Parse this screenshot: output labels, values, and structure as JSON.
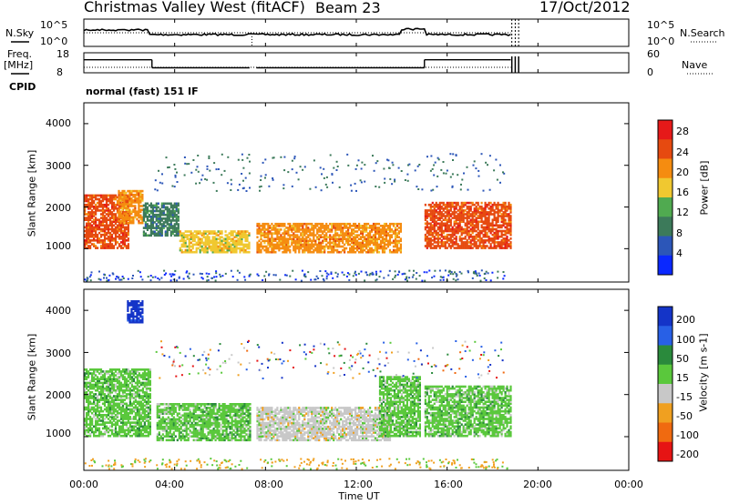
{
  "header": {
    "title": "Christmas Valley West (fitACF)",
    "beam": "Beam 23",
    "date": "17/Oct/2012"
  },
  "panels": {
    "noise": {
      "left_label": "N.Sky",
      "left_ticks": [
        "10^5",
        "10^0"
      ],
      "right_ticks": [
        "10^5",
        "10^0"
      ],
      "right_label": "N.Search"
    },
    "freq": {
      "left_label_line1": "Freq.",
      "left_label_line2": "[MHz]",
      "left_ticks": [
        "18",
        "8"
      ],
      "right_ticks": [
        "60",
        "0"
      ],
      "right_label": "Nave"
    },
    "cpid": {
      "label": "CPID",
      "program": "normal (fast) 151 IF"
    },
    "power": {
      "ylabel": "Slant Range [km]",
      "yticks": [
        "4000",
        "3000",
        "2000",
        "1000"
      ],
      "colorbar_label": "Power [dB]",
      "colorbar_ticks": [
        "28",
        "24",
        "20",
        "16",
        "12",
        "8",
        "4"
      ]
    },
    "velocity": {
      "ylabel": "Slant Range [km]",
      "yticks": [
        "4000",
        "3000",
        "2000",
        "1000"
      ],
      "colorbar_label": "Velocity [m s-1]",
      "colorbar_ticks": [
        "200",
        "100",
        "50",
        "15",
        "-15",
        "-50",
        "-100",
        "-200"
      ]
    }
  },
  "xaxis": {
    "ticks": [
      "00:00",
      "04:00",
      "08:00",
      "12:00",
      "16:00",
      "20:00",
      "00:00"
    ],
    "label": "Time UT"
  },
  "colors": {
    "power_scale": [
      "#0a28ff",
      "#2c56b8",
      "#3c7a5a",
      "#50aa50",
      "#f0c830",
      "#f58c10",
      "#e64a10",
      "#e61919"
    ],
    "velocity_scale": [
      "#1434c8",
      "#2860e6",
      "#2a8a3c",
      "#5ac83c",
      "#c8c8c8",
      "#f0a020",
      "#f06a10",
      "#e61414"
    ]
  },
  "chart_data": {
    "type": "heatmap",
    "title": "Christmas Valley West (fitACF)",
    "xlabel": "Time UT",
    "ylabel": "Slant Range [km]",
    "xlim": [
      0,
      24
    ],
    "ylim": [
      200,
      4500
    ],
    "power_colorbar": {
      "label": "Power [dB]",
      "range": [
        0,
        30
      ]
    },
    "velocity_colorbar": {
      "label": "Velocity [m s-1]",
      "range": [
        -250,
        250
      ]
    },
    "freq_series": [
      {
        "t": [
          0,
          3.0
        ],
        "freq_mhz": 14.5
      },
      {
        "t": [
          3.0,
          7.3
        ],
        "freq_mhz": 10.5
      },
      {
        "t": [
          7.6,
          15.0
        ],
        "freq_mhz": 10.5
      },
      {
        "t": [
          15.0,
          18.8
        ],
        "freq_mhz": 14.5
      }
    ],
    "power_bands": [
      {
        "t_start": 0.0,
        "t_end": 2.0,
        "range_min": 1000,
        "range_max": 2300,
        "power_db": 26
      },
      {
        "t_start": 1.5,
        "t_end": 2.6,
        "range_min": 1600,
        "range_max": 2400,
        "power_db": 22
      },
      {
        "t_start": 2.6,
        "t_end": 4.2,
        "range_min": 1300,
        "range_max": 2100,
        "power_db": 10
      },
      {
        "t_start": 4.2,
        "t_end": 7.3,
        "range_min": 900,
        "range_max": 1400,
        "power_db": 18
      },
      {
        "t_start": 7.6,
        "t_end": 14.0,
        "range_min": 900,
        "range_max": 1600,
        "power_db": 20
      },
      {
        "t_start": 15.0,
        "t_end": 18.8,
        "range_min": 1000,
        "range_max": 2100,
        "power_db": 26
      }
    ],
    "velocity_bands": [
      {
        "t_start": 0.0,
        "t_end": 2.9,
        "range_min": 1000,
        "range_max": 2600,
        "velocity": 0
      },
      {
        "t_start": 1.9,
        "t_end": 2.6,
        "range_min": 3700,
        "range_max": 4200,
        "velocity": 200
      },
      {
        "t_start": 3.2,
        "t_end": 7.3,
        "range_min": 900,
        "range_max": 1800,
        "velocity": 40
      },
      {
        "t_start": 7.6,
        "t_end": 13.5,
        "range_min": 900,
        "range_max": 1700,
        "velocity": -40
      },
      {
        "t_start": 13.0,
        "t_end": 14.8,
        "range_min": 1000,
        "range_max": 2400,
        "velocity": 40
      },
      {
        "t_start": 15.0,
        "t_end": 18.8,
        "range_min": 1000,
        "range_max": 2200,
        "velocity": 0
      }
    ]
  }
}
